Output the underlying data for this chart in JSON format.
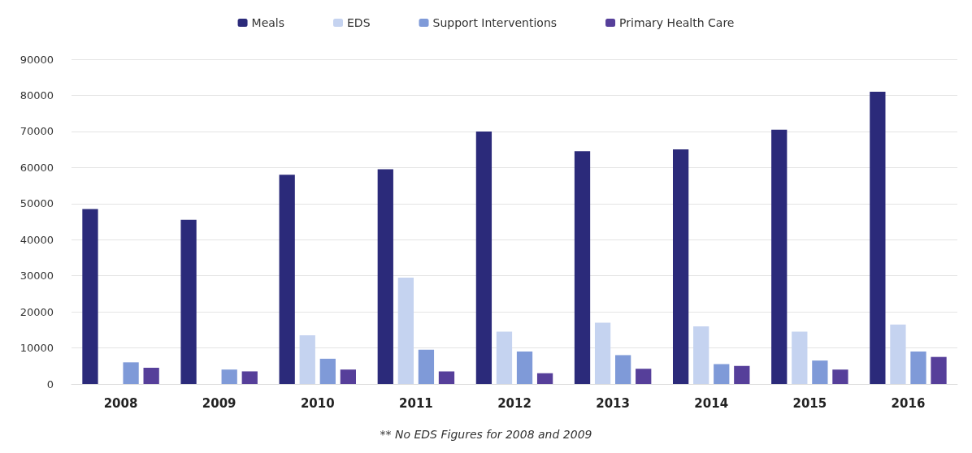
{
  "chart_data": {
    "type": "bar",
    "categories": [
      "2008",
      "2009",
      "2010",
      "2011",
      "2012",
      "2013",
      "2014",
      "2015",
      "2016"
    ],
    "series": [
      {
        "name": "Meals",
        "color": "#2b2a7a",
        "values": [
          48500,
          45500,
          58000,
          59500,
          70000,
          64500,
          65000,
          70500,
          81000
        ]
      },
      {
        "name": "EDS",
        "color": "#c5d3f0",
        "values": [
          null,
          null,
          13500,
          29500,
          14500,
          17000,
          16000,
          14500,
          16500
        ]
      },
      {
        "name": "Support Interventions",
        "color": "#7f9ad8",
        "values": [
          6000,
          4000,
          7000,
          9500,
          9000,
          8000,
          5500,
          6500,
          9000
        ]
      },
      {
        "name": "Primary Health Care",
        "color": "#563f9a",
        "values": [
          4500,
          3500,
          4000,
          3500,
          3000,
          4200,
          5000,
          4000,
          7500
        ]
      }
    ],
    "ylim": [
      0,
      90000
    ],
    "yticks": [
      0,
      10000,
      20000,
      30000,
      40000,
      50000,
      60000,
      70000,
      80000,
      90000
    ],
    "grid": "y",
    "legend": "top",
    "annotations": [
      "** No EDS Figures for 2008 and 2009"
    ]
  }
}
